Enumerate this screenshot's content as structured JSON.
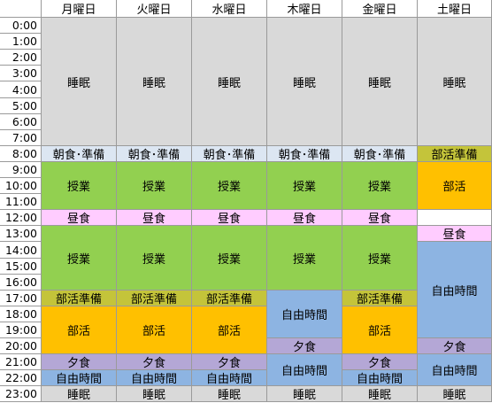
{
  "days": [
    "月曜日",
    "火曜日",
    "水曜日",
    "木曜日",
    "金曜日",
    "土曜日"
  ],
  "times": [
    "0:00",
    "1:00",
    "2:00",
    "3:00",
    "4:00",
    "5:00",
    "6:00",
    "7:00",
    "8:00",
    "9:00",
    "10:00",
    "11:00",
    "12:00",
    "13:00",
    "14:00",
    "15:00",
    "16:00",
    "17:00",
    "18:00",
    "19:00",
    "20:00",
    "21:00",
    "22:00",
    "23:00"
  ],
  "colors": {
    "sleep": "#d9d9d9",
    "breakfast": "#dce6f2",
    "class": "#92d050",
    "lunch": "#ffccff",
    "prep": "#c4c43a",
    "club": "#ffc000",
    "dinner": "#b4a7d6",
    "free": "#8db4e2"
  },
  "schedule": [
    [
      {
        "label": "睡眠",
        "start": 0,
        "end": 8,
        "kind": "sleep"
      },
      {
        "label": "朝食･準備",
        "start": 8,
        "end": 9,
        "kind": "breakfast"
      },
      {
        "label": "授業",
        "start": 9,
        "end": 12,
        "kind": "class"
      },
      {
        "label": "昼食",
        "start": 12,
        "end": 13,
        "kind": "lunch"
      },
      {
        "label": "授業",
        "start": 13,
        "end": 17,
        "kind": "class"
      },
      {
        "label": "部活準備",
        "start": 17,
        "end": 18,
        "kind": "prep"
      },
      {
        "label": "部活",
        "start": 18,
        "end": 21,
        "kind": "club"
      },
      {
        "label": "夕食",
        "start": 21,
        "end": 22,
        "kind": "dinner"
      },
      {
        "label": "自由時間",
        "start": 22,
        "end": 23,
        "kind": "free"
      },
      {
        "label": "睡眠",
        "start": 23,
        "end": 24,
        "kind": "sleep"
      }
    ],
    [
      {
        "label": "睡眠",
        "start": 0,
        "end": 8,
        "kind": "sleep"
      },
      {
        "label": "朝食･準備",
        "start": 8,
        "end": 9,
        "kind": "breakfast"
      },
      {
        "label": "授業",
        "start": 9,
        "end": 12,
        "kind": "class"
      },
      {
        "label": "昼食",
        "start": 12,
        "end": 13,
        "kind": "lunch"
      },
      {
        "label": "授業",
        "start": 13,
        "end": 17,
        "kind": "class"
      },
      {
        "label": "部活準備",
        "start": 17,
        "end": 18,
        "kind": "prep"
      },
      {
        "label": "部活",
        "start": 18,
        "end": 21,
        "kind": "club"
      },
      {
        "label": "夕食",
        "start": 21,
        "end": 22,
        "kind": "dinner"
      },
      {
        "label": "自由時間",
        "start": 22,
        "end": 23,
        "kind": "free"
      },
      {
        "label": "睡眠",
        "start": 23,
        "end": 24,
        "kind": "sleep"
      }
    ],
    [
      {
        "label": "睡眠",
        "start": 0,
        "end": 8,
        "kind": "sleep"
      },
      {
        "label": "朝食･準備",
        "start": 8,
        "end": 9,
        "kind": "breakfast"
      },
      {
        "label": "授業",
        "start": 9,
        "end": 12,
        "kind": "class"
      },
      {
        "label": "昼食",
        "start": 12,
        "end": 13,
        "kind": "lunch"
      },
      {
        "label": "授業",
        "start": 13,
        "end": 17,
        "kind": "class"
      },
      {
        "label": "部活準備",
        "start": 17,
        "end": 18,
        "kind": "prep"
      },
      {
        "label": "部活",
        "start": 18,
        "end": 21,
        "kind": "club"
      },
      {
        "label": "夕食",
        "start": 21,
        "end": 22,
        "kind": "dinner"
      },
      {
        "label": "自由時間",
        "start": 22,
        "end": 23,
        "kind": "free"
      },
      {
        "label": "睡眠",
        "start": 23,
        "end": 24,
        "kind": "sleep"
      }
    ],
    [
      {
        "label": "睡眠",
        "start": 0,
        "end": 8,
        "kind": "sleep"
      },
      {
        "label": "朝食･準備",
        "start": 8,
        "end": 9,
        "kind": "breakfast"
      },
      {
        "label": "授業",
        "start": 9,
        "end": 12,
        "kind": "class"
      },
      {
        "label": "昼食",
        "start": 12,
        "end": 13,
        "kind": "lunch"
      },
      {
        "label": "授業",
        "start": 13,
        "end": 17,
        "kind": "class"
      },
      {
        "label": "自由時間",
        "start": 17,
        "end": 20,
        "kind": "free"
      },
      {
        "label": "夕食",
        "start": 20,
        "end": 21,
        "kind": "dinner"
      },
      {
        "label": "自由時間",
        "start": 21,
        "end": 23,
        "kind": "free"
      },
      {
        "label": "睡眠",
        "start": 23,
        "end": 24,
        "kind": "sleep"
      }
    ],
    [
      {
        "label": "睡眠",
        "start": 0,
        "end": 8,
        "kind": "sleep"
      },
      {
        "label": "朝食･準備",
        "start": 8,
        "end": 9,
        "kind": "breakfast"
      },
      {
        "label": "授業",
        "start": 9,
        "end": 12,
        "kind": "class"
      },
      {
        "label": "昼食",
        "start": 12,
        "end": 13,
        "kind": "lunch"
      },
      {
        "label": "授業",
        "start": 13,
        "end": 17,
        "kind": "class"
      },
      {
        "label": "部活準備",
        "start": 17,
        "end": 18,
        "kind": "prep"
      },
      {
        "label": "部活",
        "start": 18,
        "end": 21,
        "kind": "club"
      },
      {
        "label": "夕食",
        "start": 21,
        "end": 22,
        "kind": "dinner"
      },
      {
        "label": "自由時間",
        "start": 22,
        "end": 23,
        "kind": "free"
      },
      {
        "label": "睡眠",
        "start": 23,
        "end": 24,
        "kind": "sleep"
      }
    ],
    [
      {
        "label": "睡眠",
        "start": 0,
        "end": 8,
        "kind": "sleep"
      },
      {
        "label": "部活準備",
        "start": 8,
        "end": 9,
        "kind": "prep"
      },
      {
        "label": "部活",
        "start": 9,
        "end": 12,
        "kind": "club"
      },
      {
        "label": "",
        "start": 12,
        "end": 13,
        "kind": "blank"
      },
      {
        "label": "昼食",
        "start": 13,
        "end": 14,
        "kind": "lunch"
      },
      {
        "label": "自由時間",
        "start": 14,
        "end": 20,
        "kind": "free"
      },
      {
        "label": "夕食",
        "start": 20,
        "end": 21,
        "kind": "dinner"
      },
      {
        "label": "自由時間",
        "start": 21,
        "end": 23,
        "kind": "free"
      },
      {
        "label": "睡眠",
        "start": 23,
        "end": 24,
        "kind": "sleep"
      }
    ]
  ]
}
